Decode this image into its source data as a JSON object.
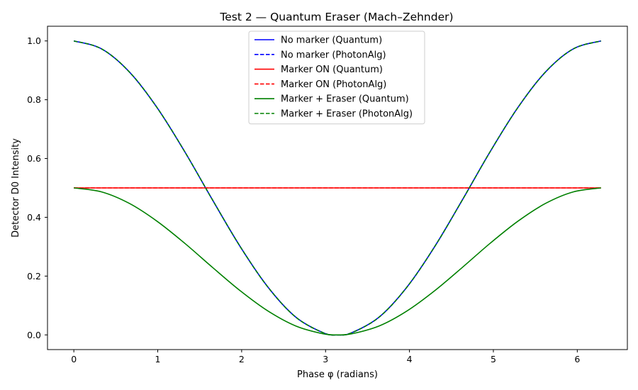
{
  "chart_data": {
    "type": "line",
    "title": "Test 2 — Quantum Eraser (Mach–Zehnder)",
    "xlabel": "Phase φ (radians)",
    "ylabel": "Detector D0 Intensity",
    "xlim": [
      -0.314,
      6.597
    ],
    "ylim": [
      -0.05,
      1.05
    ],
    "xticks": [
      0,
      1,
      2,
      3,
      4,
      5,
      6
    ],
    "yticks": [
      0.0,
      0.2,
      0.4,
      0.6,
      0.8,
      1.0
    ],
    "xtick_labels": [
      "0",
      "1",
      "2",
      "3",
      "4",
      "5",
      "6"
    ],
    "ytick_labels": [
      "0.0",
      "0.2",
      "0.4",
      "0.6",
      "0.8",
      "1.0"
    ],
    "grid": false,
    "legend_position": "top-center",
    "x": [
      0,
      0.3307,
      0.6614,
      0.9921,
      1.3228,
      1.6535,
      1.9842,
      2.3149,
      2.6456,
      2.9763,
      3.1416,
      3.307,
      3.6377,
      3.9684,
      4.2991,
      4.6298,
      4.9605,
      5.2912,
      5.6219,
      5.9526,
      6.2832
    ],
    "series": [
      {
        "name": "No marker (Quantum)",
        "color": "#0000ff",
        "dash": "solid",
        "values": [
          1.0,
          0.9729,
          0.8946,
          0.773,
          0.6227,
          0.4588,
          0.2997,
          0.162,
          0.0603,
          0.0068,
          0.0,
          0.0068,
          0.0603,
          0.162,
          0.2997,
          0.4588,
          0.6227,
          0.773,
          0.8946,
          0.9729,
          1.0
        ]
      },
      {
        "name": "No marker (PhotonAlg)",
        "color": "#0000ff",
        "dash": "dashed",
        "values": [
          1.0,
          0.9729,
          0.8946,
          0.773,
          0.6227,
          0.4588,
          0.2997,
          0.162,
          0.0603,
          0.0068,
          0.0,
          0.0068,
          0.0603,
          0.162,
          0.2997,
          0.4588,
          0.6227,
          0.773,
          0.8946,
          0.9729,
          1.0
        ]
      },
      {
        "name": "Marker ON (Quantum)",
        "color": "#ff0000",
        "dash": "solid",
        "values": [
          0.5,
          0.5,
          0.5,
          0.5,
          0.5,
          0.5,
          0.5,
          0.5,
          0.5,
          0.5,
          0.5,
          0.5,
          0.5,
          0.5,
          0.5,
          0.5,
          0.5,
          0.5,
          0.5,
          0.5,
          0.5
        ]
      },
      {
        "name": "Marker ON (PhotonAlg)",
        "color": "#ff0000",
        "dash": "dashed",
        "values": [
          0.5,
          0.5,
          0.5,
          0.5,
          0.5,
          0.5,
          0.5,
          0.5,
          0.5,
          0.5,
          0.5,
          0.5,
          0.5,
          0.5,
          0.5,
          0.5,
          0.5,
          0.5,
          0.5,
          0.5,
          0.5
        ]
      },
      {
        "name": "Marker + Eraser (Quantum)",
        "color": "#008000",
        "dash": "solid",
        "values": [
          0.5,
          0.4865,
          0.4473,
          0.3865,
          0.3114,
          0.2294,
          0.1499,
          0.081,
          0.0302,
          0.0034,
          0.0,
          0.0034,
          0.0302,
          0.081,
          0.1499,
          0.2294,
          0.3114,
          0.3865,
          0.4473,
          0.4865,
          0.5
        ]
      },
      {
        "name": "Marker + Eraser (PhotonAlg)",
        "color": "#008000",
        "dash": "dashed",
        "values": [
          1.0,
          0.9729,
          0.8946,
          0.773,
          0.6227,
          0.4588,
          0.2997,
          0.162,
          0.0603,
          0.0068,
          0.0,
          0.0068,
          0.0603,
          0.162,
          0.2997,
          0.4588,
          0.6227,
          0.773,
          0.8946,
          0.9729,
          1.0
        ]
      }
    ]
  }
}
